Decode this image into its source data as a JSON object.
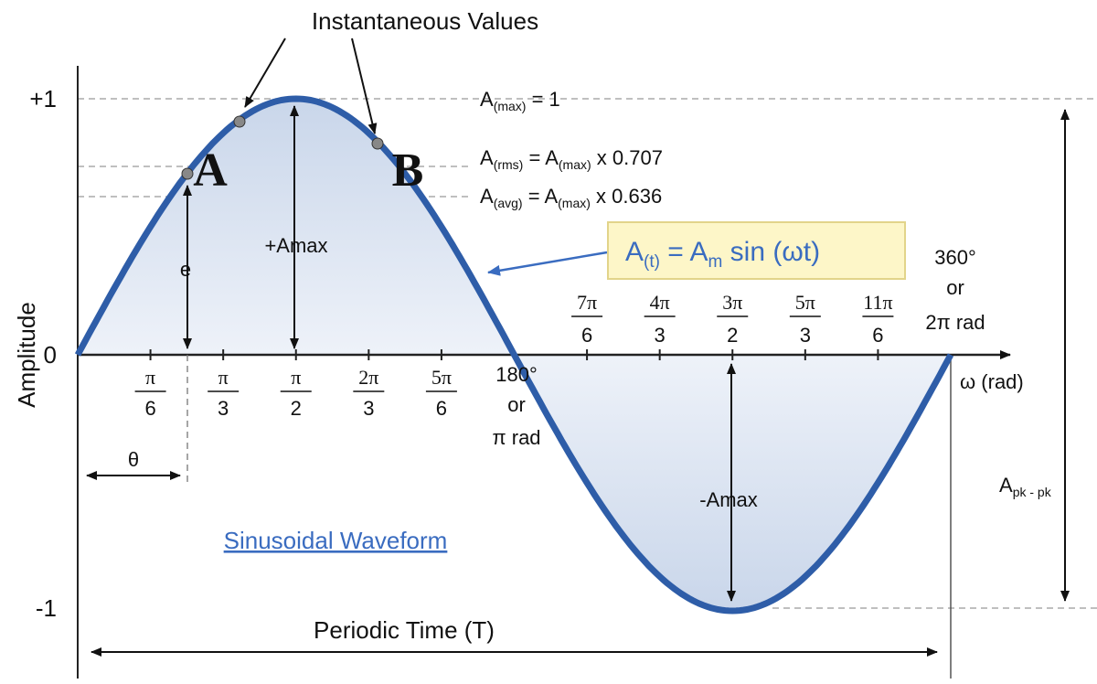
{
  "callout": "Instantaneous Values",
  "y_axis": {
    "label": "Amplitude",
    "ticks": [
      "+1",
      "0",
      "-1"
    ]
  },
  "x_axis": {
    "label": "ω (rad)",
    "lower_ticks": [
      [
        "π",
        "6"
      ],
      [
        "π",
        "3"
      ],
      [
        "π",
        "2"
      ],
      [
        "2π",
        "3"
      ],
      [
        "5π",
        "6"
      ]
    ],
    "upper_ticks": [
      [
        "7π",
        "6"
      ],
      [
        "4π",
        "3"
      ],
      [
        "3π",
        "2"
      ],
      [
        "5π",
        "3"
      ],
      [
        "11π",
        "6"
      ]
    ]
  },
  "half_cycle": [
    "180°",
    "or",
    "π rad"
  ],
  "full_cycle": [
    "360°",
    "or",
    "2π rad"
  ],
  "levels": {
    "max": [
      "A",
      "(max)",
      " = 1"
    ],
    "rms": [
      "A",
      "(rms)",
      " = ",
      "A",
      "(max)",
      " x 0.707"
    ],
    "avg": [
      "A",
      "(avg)",
      " = ",
      "A",
      "(max)",
      " x 0.636"
    ]
  },
  "points": [
    "A",
    "B"
  ],
  "labels": {
    "e": "e",
    "pos_peak": "+Amax",
    "neg_peak": "-Amax",
    "theta": "θ",
    "peak_to_peak": [
      "A",
      "pk - pk"
    ],
    "period": "Periodic Time (T)",
    "name": "Sinusoidal Waveform"
  },
  "formula": [
    "A",
    "(t)",
    " = A",
    "m",
    " sin (ωt)"
  ]
}
